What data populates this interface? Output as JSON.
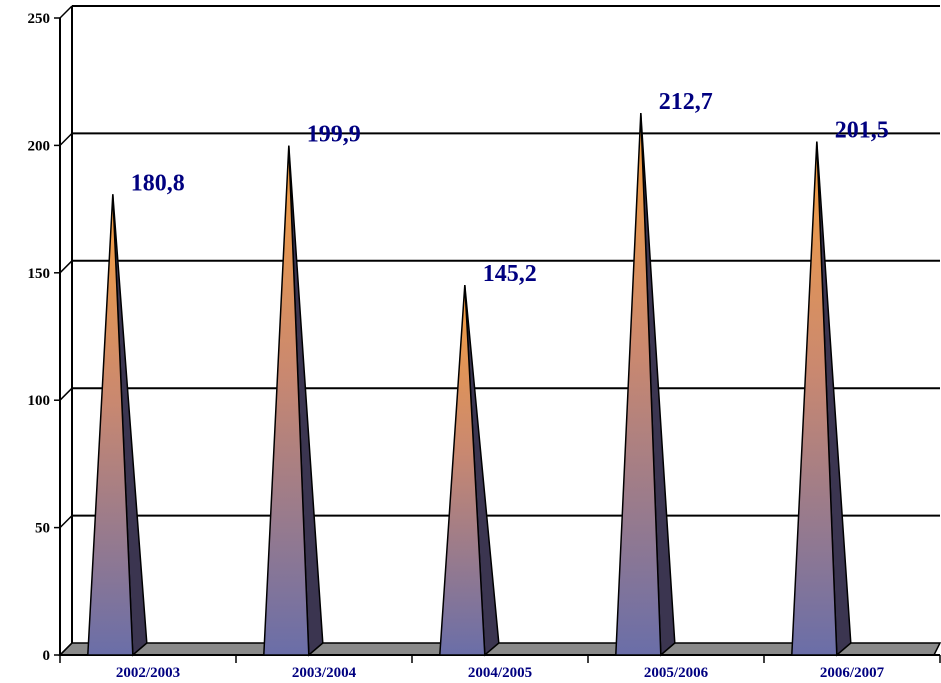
{
  "chart_data": {
    "type": "bar",
    "bar_shape": "pyramid-3d",
    "categories": [
      "2002/2003",
      "2003/2004",
      "2004/2005",
      "2005/2006",
      "2006/2007"
    ],
    "values": [
      180.8,
      199.9,
      145.2,
      212.7,
      201.5
    ],
    "value_labels": [
      "180,8",
      "199,9",
      "145,2",
      "212,7",
      "201,5"
    ],
    "title": "",
    "xlabel": "",
    "ylabel": "",
    "ylim": [
      0,
      250
    ],
    "yticks": [
      0,
      50,
      100,
      150,
      200,
      250
    ],
    "ytick_labels": [
      "0",
      "50",
      "100",
      "150",
      "200",
      "250"
    ],
    "grid": true,
    "legend": "none",
    "colors": {
      "top": "#f7a040",
      "bottom": "#6a6ea8",
      "side_dark": "#3b3550",
      "floor": "#8a8a8a",
      "labels": "#000080"
    }
  }
}
